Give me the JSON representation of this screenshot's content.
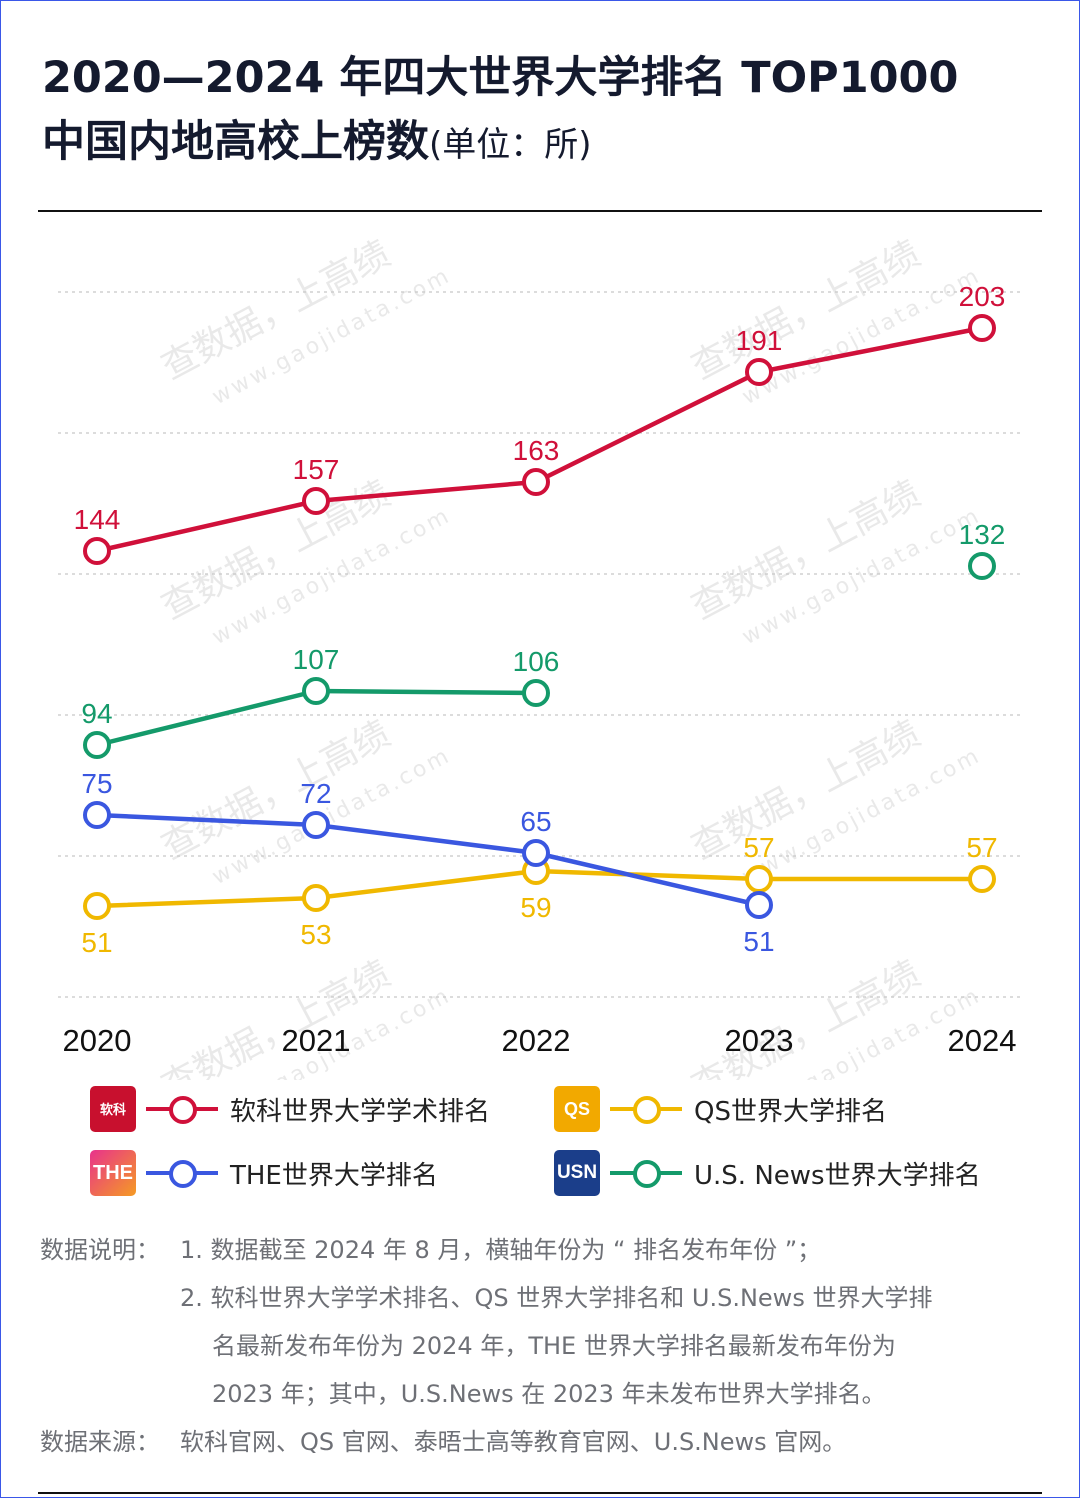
{
  "title": {
    "line1": "2020—2024 年四大世界大学排名 TOP1000",
    "line2": "中国内地高校上榜数",
    "unit": "(单位：所)"
  },
  "watermark": [
    "查数据，上高绩",
    "www.gaojidata.com"
  ],
  "chart_data": {
    "type": "line",
    "categories": [
      "2020",
      "2021",
      "2022",
      "2023",
      "2024"
    ],
    "grid": true,
    "series": [
      {
        "name": "软科世界大学学术排名",
        "color": "#d0103a",
        "values": [
          144,
          157,
          163,
          191,
          203
        ],
        "labels": [
          "144",
          "157",
          "163",
          "191",
          "203"
        ]
      },
      {
        "name": "U.S. News世界大学排名",
        "color": "#149a6a",
        "values": [
          94,
          107,
          106,
          null,
          132
        ],
        "labels": [
          "94",
          "107",
          "106",
          "",
          "132"
        ]
      },
      {
        "name": "THE世界大学排名",
        "color": "#3a57e0",
        "values": [
          75,
          72,
          65,
          51,
          null
        ],
        "labels": [
          "75",
          "72",
          "65",
          "51",
          ""
        ]
      },
      {
        "name": "QS世界大学排名",
        "color": "#f0b800",
        "values": [
          51,
          53,
          59,
          57,
          57
        ],
        "labels": [
          "51",
          "53",
          "59",
          "57",
          "57"
        ]
      }
    ]
  },
  "legend": {
    "ruanke": {
      "label": "软科世界大学学术排名",
      "logo": "软科"
    },
    "qs": {
      "label": "QS世界大学排名",
      "logo": "QS"
    },
    "the": {
      "label": "THE世界大学排名",
      "logo": "THE"
    },
    "usn": {
      "label": "U.S. News世界大学排名",
      "logo": "USN"
    }
  },
  "notes": {
    "head": "数据说明：",
    "item1": "1. 数据截至 2024 年 8 月，横轴年份为 “ 排名发布年份 ”；",
    "item2_l1": "2. 软科世界大学学术排名、QS 世界大学排名和 U.S.News 世界大学排",
    "item2_l2": "名最新发布年份为  2024  年，THE  世界大学排名最新发布年份为",
    "item2_l3": "2023 年；其中，U.S.News 在 2023 年未发布世界大学排名。",
    "source_head": "数据来源：",
    "source": "软科官网、QS 官网、泰晤士高等教育官网、U.S.News 官网。"
  }
}
